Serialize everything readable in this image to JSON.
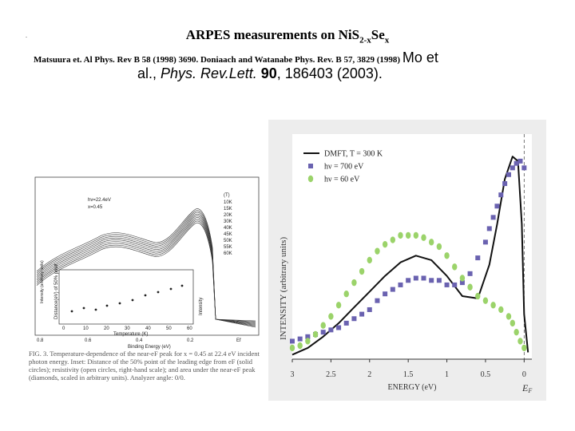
{
  "header": {
    "dot": ".",
    "title_main": "ARPES measurements on NiS",
    "title_sub1": "2-x",
    "title_mid": "Se",
    "title_sub2": "x",
    "ref_line1": "Matsuura et. Al Phys. Rev B 58 (1998) 3690. Doniaach and Watanabe Phys. Rev. B 57, 3829 (1998)",
    "ref_mo": "Mo et",
    "ref2_al": "al., ",
    "ref2_journal": "Phys. Rev.Lett.",
    "ref2_vol": "90",
    "ref2_rest": ", 186403  (2003)."
  },
  "left_figure": {
    "label_hv": "hv=22.4eV",
    "label_x": "x=0.45",
    "temps_header": "(T)",
    "temps": [
      "10K",
      "15K",
      "20K",
      "30K",
      "40K",
      "45K",
      "50K",
      "55K",
      "60K"
    ],
    "ylabel": "Intensity (arbitrary units)",
    "xlabel": "Binding Energy (eV)",
    "xticks": [
      "0.8",
      "0.6",
      "0.4",
      "0.2",
      "Ef"
    ],
    "inset": {
      "ylabel_left": "Distance(eV) of 50% point",
      "ylabel_right": "Intensity",
      "xlabel": "Temperature (K)",
      "xticks": [
        "0",
        "10",
        "20",
        "30",
        "40",
        "50",
        "60"
      ]
    },
    "caption": "FIG. 3. Temperature-dependence of the near-eF peak for x = 0.45 at 22.4 eV incident photon energy. Inset: Distance of the 50% point of the leading edge from eF (solid circles); resistivity (open circles, right-hand scale); and area under the near-eF peak (diamonds, scaled in arbitrary units). Analyzer angle: 0/0."
  },
  "right_figure": {
    "ylabel": "INTENSITY (arbitrary units)",
    "xlabel": "ENERGY (eV)",
    "ef_label": "E",
    "ef_sub": "F",
    "legend": [
      {
        "label": "DMFT, T = 300 K",
        "marker": "line"
      },
      {
        "label": "hν = 700 eV",
        "marker": "square"
      },
      {
        "label": "hν = 60 eV",
        "marker": "circle"
      }
    ]
  },
  "colors": {
    "square": "#6a62b0",
    "circle": "#9bd36a",
    "dmft": "#111111",
    "panel_bg": "#ededed"
  },
  "chart_data": {
    "type": "scatter",
    "xlabel": "ENERGY (eV)",
    "ylabel": "INTENSITY (arbitrary units)",
    "xlim": [
      3.0,
      -0.1
    ],
    "ylim": [
      0,
      1
    ],
    "xticks": [
      "3",
      "2.5",
      "2",
      "1.5",
      "1",
      "0.5",
      "0"
    ],
    "series": [
      {
        "name": "DMFT, T = 300 K",
        "type": "line",
        "x": [
          3.0,
          2.8,
          2.6,
          2.4,
          2.2,
          2.0,
          1.8,
          1.6,
          1.4,
          1.2,
          1.0,
          0.8,
          0.6,
          0.45,
          0.35,
          0.25,
          0.15,
          0.08,
          0.03,
          0.0,
          -0.05
        ],
        "y": [
          0.02,
          0.05,
          0.1,
          0.16,
          0.23,
          0.3,
          0.37,
          0.43,
          0.46,
          0.44,
          0.37,
          0.28,
          0.27,
          0.42,
          0.6,
          0.8,
          0.9,
          0.88,
          0.6,
          0.2,
          0.03
        ]
      },
      {
        "name": "hν = 700 eV",
        "type": "scatter",
        "x": [
          3.0,
          2.9,
          2.8,
          2.7,
          2.6,
          2.5,
          2.4,
          2.3,
          2.2,
          2.1,
          2.0,
          1.9,
          1.8,
          1.7,
          1.6,
          1.5,
          1.4,
          1.3,
          1.2,
          1.1,
          1.0,
          0.9,
          0.8,
          0.7,
          0.6,
          0.5,
          0.45,
          0.4,
          0.35,
          0.3,
          0.25,
          0.2,
          0.15,
          0.1,
          0.05,
          0.0
        ],
        "y": [
          0.08,
          0.09,
          0.1,
          0.11,
          0.12,
          0.13,
          0.14,
          0.16,
          0.18,
          0.2,
          0.22,
          0.26,
          0.29,
          0.31,
          0.33,
          0.35,
          0.36,
          0.36,
          0.35,
          0.35,
          0.33,
          0.33,
          0.34,
          0.38,
          0.45,
          0.52,
          0.58,
          0.63,
          0.68,
          0.73,
          0.78,
          0.82,
          0.85,
          0.87,
          0.88,
          0.85
        ]
      },
      {
        "name": "hν = 60 eV",
        "type": "scatter",
        "x": [
          3.0,
          2.9,
          2.8,
          2.7,
          2.6,
          2.5,
          2.4,
          2.3,
          2.2,
          2.1,
          2.0,
          1.9,
          1.8,
          1.7,
          1.6,
          1.5,
          1.4,
          1.3,
          1.2,
          1.1,
          1.0,
          0.9,
          0.8,
          0.7,
          0.6,
          0.5,
          0.4,
          0.3,
          0.2,
          0.15,
          0.1,
          0.05,
          0.0
        ],
        "y": [
          0.05,
          0.06,
          0.08,
          0.11,
          0.15,
          0.19,
          0.24,
          0.29,
          0.34,
          0.39,
          0.44,
          0.48,
          0.51,
          0.53,
          0.55,
          0.55,
          0.55,
          0.54,
          0.52,
          0.5,
          0.46,
          0.41,
          0.36,
          0.32,
          0.28,
          0.26,
          0.24,
          0.22,
          0.19,
          0.16,
          0.12,
          0.08,
          0.05
        ]
      }
    ]
  }
}
